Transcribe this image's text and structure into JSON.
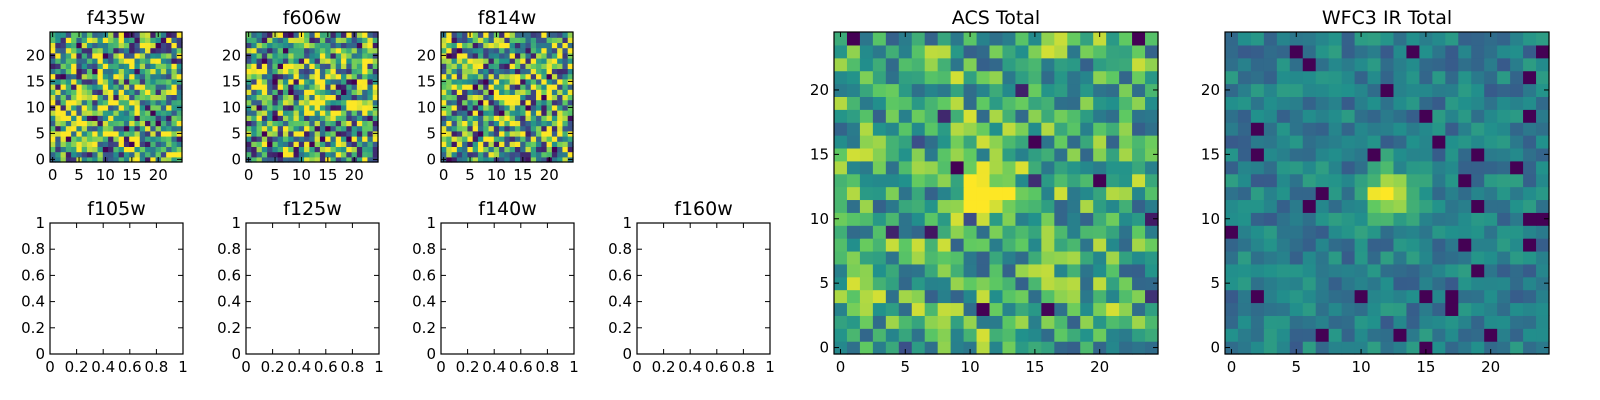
{
  "chart_data": [
    {
      "type": "heatmap",
      "title": "f435w",
      "xticks": [
        0,
        5,
        10,
        15,
        20
      ],
      "yticks": [
        0,
        5,
        10,
        15,
        20
      ],
      "xlim": [
        -0.5,
        24.5
      ],
      "ylim": [
        -0.5,
        24.5
      ],
      "grid_size": 25,
      "bright_spot": null,
      "noise": "high",
      "seed": 11
    },
    {
      "type": "heatmap",
      "title": "f606w",
      "xticks": [
        0,
        5,
        10,
        15,
        20
      ],
      "yticks": [
        0,
        5,
        10,
        15,
        20
      ],
      "xlim": [
        -0.5,
        24.5
      ],
      "ylim": [
        -0.5,
        24.5
      ],
      "grid_size": 25,
      "bright_spot": [
        12,
        12
      ],
      "noise": "high",
      "seed": 23
    },
    {
      "type": "heatmap",
      "title": "f814w",
      "xticks": [
        0,
        5,
        10,
        15,
        20
      ],
      "yticks": [
        0,
        5,
        10,
        15,
        20
      ],
      "xlim": [
        -0.5,
        24.5
      ],
      "ylim": [
        -0.5,
        24.5
      ],
      "grid_size": 25,
      "bright_spot": [
        12,
        12
      ],
      "noise": "high",
      "seed": 37
    },
    {
      "type": "empty",
      "title": "f105w",
      "xticks": [
        0.0,
        0.2,
        0.4,
        0.6,
        0.8,
        1.0
      ],
      "yticks": [
        0.0,
        0.2,
        0.4,
        0.6,
        0.8,
        1.0
      ],
      "xlim": [
        0,
        1
      ],
      "ylim": [
        0,
        1
      ]
    },
    {
      "type": "empty",
      "title": "f125w",
      "xticks": [
        0.0,
        0.2,
        0.4,
        0.6,
        0.8,
        1.0
      ],
      "yticks": [
        0.0,
        0.2,
        0.4,
        0.6,
        0.8,
        1.0
      ],
      "xlim": [
        0,
        1
      ],
      "ylim": [
        0,
        1
      ]
    },
    {
      "type": "empty",
      "title": "f140w",
      "xticks": [
        0.0,
        0.2,
        0.4,
        0.6,
        0.8,
        1.0
      ],
      "yticks": [
        0.0,
        0.2,
        0.4,
        0.6,
        0.8,
        1.0
      ],
      "xlim": [
        0,
        1
      ],
      "ylim": [
        0,
        1
      ]
    },
    {
      "type": "empty",
      "title": "f160w",
      "xticks": [
        0.0,
        0.2,
        0.4,
        0.6,
        0.8,
        1.0
      ],
      "yticks": [
        0.0,
        0.2,
        0.4,
        0.6,
        0.8,
        1.0
      ],
      "xlim": [
        0,
        1
      ],
      "ylim": [
        0,
        1
      ]
    },
    {
      "type": "heatmap",
      "title": "ACS Total",
      "xticks": [
        0,
        5,
        10,
        15,
        20
      ],
      "yticks": [
        0,
        5,
        10,
        15,
        20
      ],
      "xlim": [
        -0.5,
        24.5
      ],
      "ylim": [
        -0.5,
        24.5
      ],
      "grid_size": 25,
      "bright_spot": [
        12,
        12
      ],
      "noise": "medium",
      "seed": 53
    },
    {
      "type": "heatmap",
      "title": "WFC3 IR Total",
      "xticks": [
        0,
        5,
        10,
        15,
        20
      ],
      "yticks": [
        0,
        5,
        10,
        15,
        20
      ],
      "xlim": [
        -0.5,
        24.5
      ],
      "ylim": [
        -0.5,
        24.5
      ],
      "grid_size": 25,
      "bright_spot": [
        12,
        12
      ],
      "noise": "low",
      "seed": 71
    }
  ],
  "colormap": [
    "#440154",
    "#3b528b",
    "#21918c",
    "#5ec962",
    "#fde725"
  ]
}
